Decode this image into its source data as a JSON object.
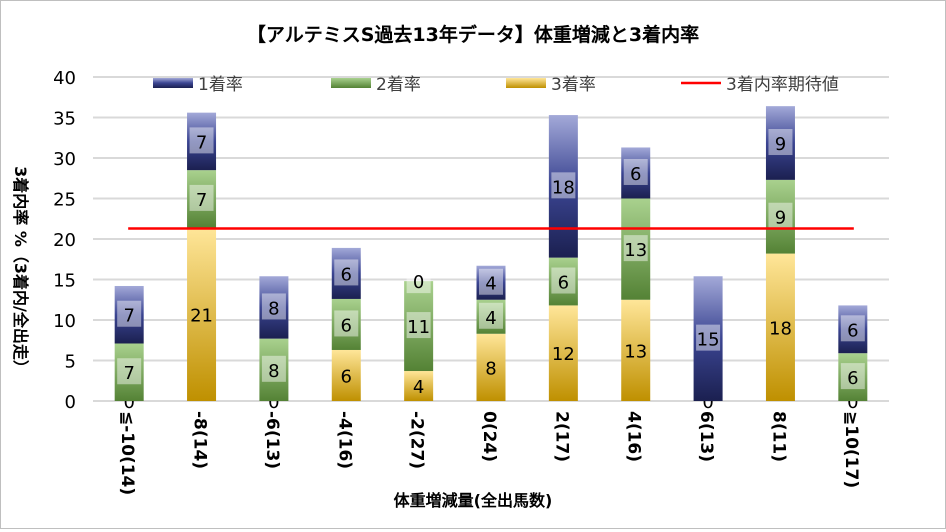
{
  "chart_data": {
    "type": "bar",
    "stacked": true,
    "title": "【アルテミスS過去13年データ】体重増減と3着内率",
    "xlabel": "体重増減量(全出馬数)",
    "ylabel": "3着内率 %（3着内/全出走）",
    "ylim": [
      0,
      40
    ],
    "yticks": [
      0,
      5,
      10,
      15,
      20,
      25,
      30,
      35,
      40
    ],
    "grid": true,
    "legend_position": "top",
    "categories": [
      "≦-10(14)",
      "-8(14)",
      "-6(13)",
      "-4(16)",
      "-2(27)",
      "0(24)",
      "2(17)",
      "4(16)",
      "6(13)",
      "8(11)",
      "≧10(17)"
    ],
    "series": [
      {
        "name": "3着率",
        "color": "#e8b84a",
        "values": [
          0,
          21.4,
          0,
          6.3,
          3.7,
          8.3,
          11.8,
          12.5,
          0,
          18.2,
          0
        ],
        "labels": [
          "0",
          "21",
          "0",
          "6",
          "4",
          "8",
          "12",
          "13",
          "0",
          "18",
          "0"
        ]
      },
      {
        "name": "2着率",
        "color": "#6a9a48",
        "values": [
          7.1,
          7.1,
          7.7,
          6.3,
          11.1,
          4.2,
          5.9,
          12.5,
          0,
          9.1,
          5.9
        ],
        "labels": [
          "7",
          "7",
          "8",
          "6",
          "11",
          "4",
          "6",
          "13",
          "0",
          "9",
          "6"
        ]
      },
      {
        "name": "1着率",
        "color": "#4a5298",
        "values": [
          7.1,
          7.1,
          7.7,
          6.3,
          0,
          4.2,
          17.6,
          6.3,
          15.4,
          9.1,
          5.9
        ],
        "labels": [
          "7",
          "7",
          "8",
          "6",
          "0",
          "4",
          "18",
          "6",
          "15",
          "9",
          "6"
        ]
      }
    ],
    "reference_line": {
      "name": "3着内率期待値",
      "value": 21.3,
      "color": "#ff0000"
    },
    "legend_order": [
      "1着率",
      "2着率",
      "3着率",
      "3着内率期待値"
    ]
  }
}
